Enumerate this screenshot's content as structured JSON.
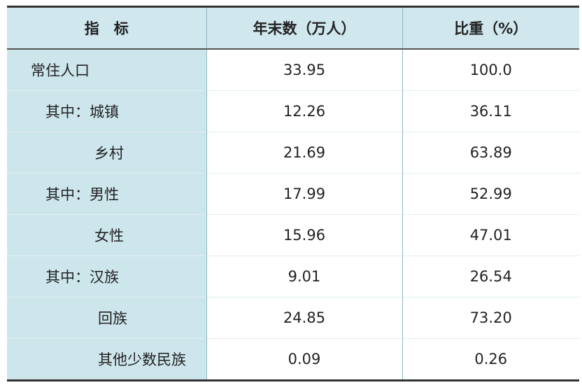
{
  "table": {
    "header": [
      "指　标",
      "年末数（万人）",
      "比重（%）"
    ],
    "rows": [
      [
        "常住人口",
        "33.95",
        "100.0"
      ],
      [
        "其中：城镇",
        "12.26",
        "36.11"
      ],
      [
        "乡村",
        "21.69",
        "63.89"
      ],
      [
        "其中：男性",
        "17.99",
        "52.99"
      ],
      [
        "女性",
        "15.96",
        "47.01"
      ],
      [
        "其中：汉族",
        "9.01",
        "26.54"
      ],
      [
        "回族",
        "24.85",
        "73.20"
      ],
      [
        "其他少数民族",
        "0.09",
        "0.26"
      ]
    ]
  }
}
